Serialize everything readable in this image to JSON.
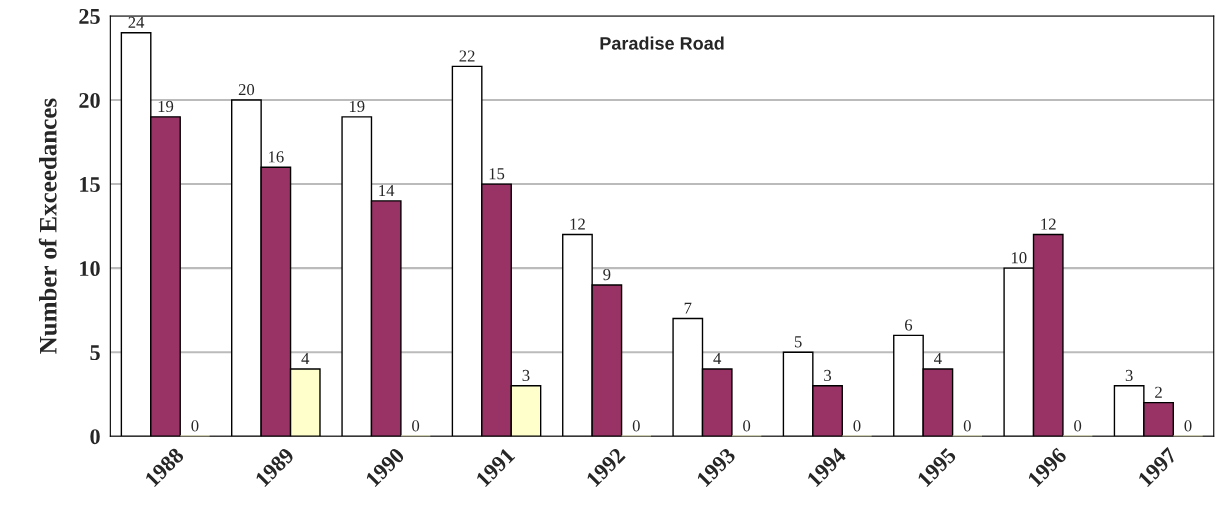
{
  "chart_data": {
    "type": "bar",
    "title": "Paradise Road",
    "ylabel": "Number of Exceedances",
    "categories": [
      "1988",
      "1989",
      "1990",
      "1991",
      "1992",
      "1993",
      "1994",
      "1995",
      "1996",
      "1997"
    ],
    "series": [
      {
        "color": "#ffffff",
        "values": [
          24,
          20,
          19,
          22,
          12,
          7,
          5,
          6,
          10,
          3
        ]
      },
      {
        "color": "#993366",
        "values": [
          19,
          16,
          14,
          15,
          9,
          4,
          3,
          4,
          12,
          2
        ]
      },
      {
        "color": "#ffffcc",
        "values": [
          0,
          4,
          0,
          3,
          0,
          0,
          0,
          0,
          0,
          0
        ]
      }
    ],
    "ylim": [
      0,
      25
    ],
    "yticks": [
      0,
      5,
      10,
      15,
      20,
      25
    ],
    "grid": "y",
    "data_labels": true
  }
}
